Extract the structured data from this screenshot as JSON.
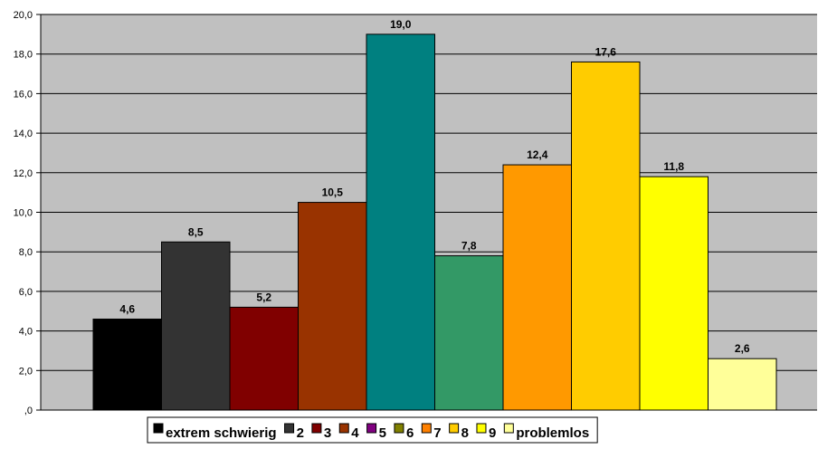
{
  "chart_data": {
    "type": "bar",
    "title": "",
    "xlabel": "",
    "ylabel": "",
    "ylim": [
      0,
      20
    ],
    "y_ticks": [
      ",0",
      "2,0",
      "4,0",
      "6,0",
      "8,0",
      "10,0",
      "12,0",
      "14,0",
      "16,0",
      "18,0",
      "20,0"
    ],
    "grid": true,
    "legend_position": "bottom",
    "series": [
      {
        "name": "extrem schwierig",
        "value": 4.6,
        "label": "4,6",
        "color": "#000000"
      },
      {
        "name": "2",
        "value": 8.5,
        "label": "8,5",
        "color": "#333333"
      },
      {
        "name": "3",
        "value": 5.2,
        "label": "5,2",
        "color": "#800000"
      },
      {
        "name": "4",
        "value": 10.5,
        "label": "10,5",
        "color": "#993300"
      },
      {
        "name": "5",
        "value": 19.0,
        "label": "19,0",
        "color": "#008080"
      },
      {
        "name": "6",
        "value": 7.8,
        "label": "7,8",
        "color": "#339966"
      },
      {
        "name": "7",
        "value": 12.4,
        "label": "12,4",
        "color": "#FF9900"
      },
      {
        "name": "8",
        "value": 17.6,
        "label": "17,6",
        "color": "#FFCC00"
      },
      {
        "name": "9",
        "value": 11.8,
        "label": "11,8",
        "color": "#FFFF00"
      },
      {
        "name": "problemlos",
        "value": 2.6,
        "label": "2,6",
        "color": "#FFFF99"
      }
    ],
    "legend": [
      {
        "label": "extrem schwierig",
        "color": "#000000"
      },
      {
        "label": "2",
        "color": "#333333"
      },
      {
        "label": "3",
        "color": "#800000"
      },
      {
        "label": "4",
        "color": "#993300"
      },
      {
        "label": "5",
        "color": "#800080"
      },
      {
        "label": "6",
        "color": "#808000"
      },
      {
        "label": "7",
        "color": "#FF8000"
      },
      {
        "label": "8",
        "color": "#FFCC00"
      },
      {
        "label": "9",
        "color": "#FFFF00"
      },
      {
        "label": "problemlos",
        "color": "#FFFF99"
      }
    ],
    "plot_background": "#C0C0C0"
  }
}
